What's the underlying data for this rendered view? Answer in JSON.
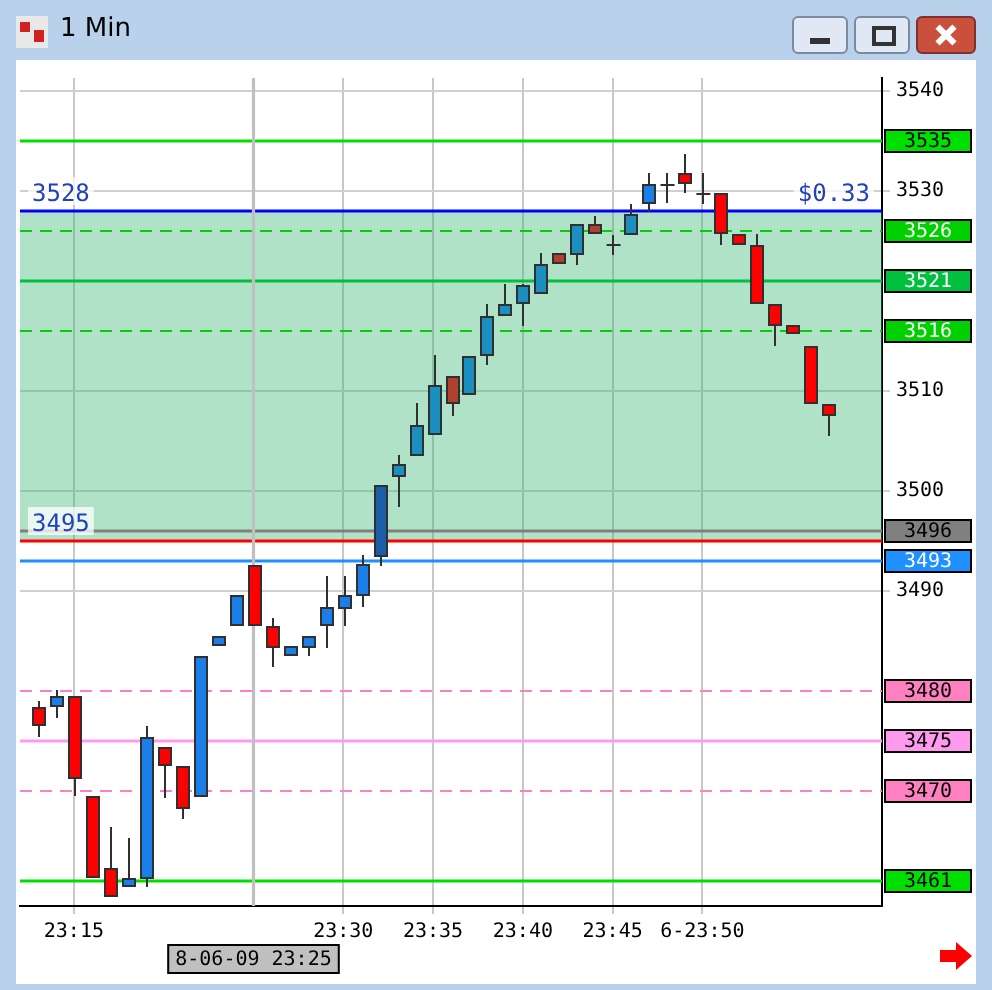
{
  "chart_data": {
    "type": "candlestick",
    "title": "1 Min",
    "x": [
      23.2167,
      23.2333,
      23.25,
      23.2667,
      23.2833,
      23.3,
      23.3167,
      23.3333,
      23.35,
      23.3667,
      23.3833,
      23.4,
      23.4167,
      23.4333,
      23.45,
      23.4667,
      23.4833,
      23.5,
      23.5167,
      23.5333,
      23.55,
      23.5667,
      23.5833,
      23.6,
      23.6167,
      23.6333,
      23.65,
      23.6667,
      23.6833,
      23.7,
      23.7167,
      23.7333,
      23.75,
      23.7667,
      23.7833,
      23.8,
      23.8167,
      23.8333,
      23.85,
      23.8667,
      23.8833,
      23.9,
      23.9167,
      23.9333,
      23.95
    ],
    "ohlc": [
      [
        3478.4,
        3479,
        3475.4,
        3476.5
      ],
      [
        3478.4,
        3480.1,
        3477.3,
        3479.5
      ],
      [
        3479.5,
        3479.5,
        3469.5,
        3471.2
      ],
      [
        3469.5,
        3469.5,
        3461.3,
        3461.3
      ],
      [
        3462.3,
        3466.4,
        3459.4,
        3459.4
      ],
      [
        3460.4,
        3465.3,
        3460.4,
        3461.3
      ],
      [
        3461.2,
        3476.5,
        3460.4,
        3475.4
      ],
      [
        3474.4,
        3474.4,
        3469.3,
        3472.5
      ],
      [
        3472.5,
        3472.5,
        3467.2,
        3468.2
      ],
      [
        3469.4,
        3483.5,
        3469.4,
        3483.5
      ],
      [
        3484.5,
        3485.5,
        3484.5,
        3485.5
      ],
      [
        3486.5,
        3489.6,
        3486.5,
        3489.6
      ],
      [
        3492.6,
        3492.6,
        3486.5,
        3486.5
      ],
      [
        3486.5,
        3487.3,
        3482.4,
        3484.3
      ],
      [
        3483.5,
        3484.5,
        3483.5,
        3484.5
      ],
      [
        3484.3,
        3485.5,
        3483.5,
        3485.5
      ],
      [
        3486.5,
        3491.5,
        3484.3,
        3488.4
      ],
      [
        3488.2,
        3491.5,
        3486.5,
        3489.6
      ],
      [
        3489.5,
        3493.6,
        3488.4,
        3492.7
      ],
      [
        3493.4,
        3500.6,
        3492.5,
        3500.6
      ],
      [
        3501.4,
        3503.6,
        3498.4,
        3502.7
      ],
      [
        3503.5,
        3508.8,
        3503.5,
        3506.6
      ],
      [
        3505.6,
        3513.6,
        3505.6,
        3510.6
      ],
      [
        3511.5,
        3511.5,
        3507.5,
        3508.7
      ],
      [
        3509.6,
        3513.5,
        3509.6,
        3513.5
      ],
      [
        3513.5,
        3518.7,
        3512.6,
        3517.5
      ],
      [
        3517.5,
        3520.7,
        3517.5,
        3518.7
      ],
      [
        3518.7,
        3520.7,
        3516.5,
        3520.6
      ],
      [
        3519.7,
        3523.8,
        3519.7,
        3522.7
      ],
      [
        3523.8,
        3523.8,
        3522.7,
        3522.7
      ],
      [
        3523.6,
        3526.7,
        3522.6,
        3526.7
      ],
      [
        3526.7,
        3527.5,
        3525.7,
        3525.7
      ],
      [
        3524.7,
        3525.6,
        3523.6,
        3524.7
      ],
      [
        3525.6,
        3528.7,
        3525.6,
        3527.7
      ],
      [
        3528.7,
        3531.8,
        3527.9,
        3530.7
      ],
      [
        3530.7,
        3531.8,
        3528.8,
        3530.7
      ],
      [
        3531.8,
        3533.7,
        3529.8,
        3530.7
      ],
      [
        3529.8,
        3531.8,
        3528.7,
        3529.8
      ],
      [
        3529.8,
        3529.8,
        3524.6,
        3525.7
      ],
      [
        3525.7,
        3525.7,
        3524.6,
        3524.6
      ],
      [
        3524.6,
        3525.7,
        3518.7,
        3518.7
      ],
      [
        3518.7,
        3518.7,
        3514.5,
        3516.5
      ],
      [
        3516.6,
        3516.6,
        3515.7,
        3515.7
      ],
      [
        3514.5,
        3514.5,
        3508.7,
        3508.7
      ],
      [
        3508.7,
        3508.7,
        3505.5,
        3507.5
      ]
    ],
    "colors": [
      "#ff0000",
      "#1a7fe8",
      "#ff0000",
      "#ff0000",
      "#ff0000",
      "#1a7fe8",
      "#1a7fe8",
      "#ff0000",
      "#ff0000",
      "#1a7fe8",
      "#1a7fe8",
      "#1a7fe8",
      "#ff0000",
      "#ff0000",
      "#1a7fe8",
      "#1a7fe8",
      "#1a7fe8",
      "#1a7fe8",
      "#1a7fe8",
      "#1a5fa8",
      "#1a8fc0",
      "#1a8fc0",
      "#1a8fc0",
      "#b04030",
      "#1a8fc0",
      "#1a8fc0",
      "#1a8fc0",
      "#1a8fc0",
      "#1a8fc0",
      "#b04030",
      "#1a8fc0",
      "#b04030",
      "#404040",
      "#1a8fc0",
      "#1a7fe8",
      "#404040",
      "#ff0000",
      "#404040",
      "#ff0000",
      "#ff0000",
      "#ff0000",
      "#ff0000",
      "#ff0000",
      "#ff0000",
      "#ff0000"
    ],
    "xlim": [
      23.2,
      24.0
    ],
    "xticks": [
      {
        "value": 23.25,
        "label": "23:15"
      },
      {
        "value": 23.5,
        "label": "23:30"
      },
      {
        "value": 23.5833,
        "label": "23:35"
      },
      {
        "value": 23.6667,
        "label": "23:40"
      },
      {
        "value": 23.75,
        "label": "23:45"
      },
      {
        "value": 23.8333,
        "label": "6-23:50"
      }
    ],
    "ylim": [
      3458.5,
      3541.3
    ],
    "yticks": [
      3490,
      3500,
      3510,
      3530,
      3540
    ],
    "grid": true,
    "legend": false,
    "bands": [
      {
        "axis": "y",
        "from": 3495,
        "to": 3528,
        "color": "#2db36b"
      }
    ],
    "ref_lines": [
      {
        "axis": "y",
        "value": 3535,
        "label": "3535",
        "color": "#00e000"
      },
      {
        "axis": "y",
        "value": 3526,
        "label": "3526",
        "color": "#00d000",
        "line_style": "dashed"
      },
      {
        "axis": "y",
        "value": 3521,
        "label": "3521",
        "color": "#00c040"
      },
      {
        "axis": "y",
        "value": 3516,
        "label": "3516",
        "color": "#00d000",
        "line_style": "dashed"
      },
      {
        "axis": "y",
        "value": 3496,
        "label": "3496",
        "color": "#808080"
      },
      {
        "axis": "y",
        "value": 3493,
        "label": "3493",
        "color": "#1e90ff"
      },
      {
        "axis": "y",
        "value": 3480,
        "label": "3480",
        "color": "#ff80c0",
        "line_style": "dashed"
      },
      {
        "axis": "y",
        "value": 3475,
        "label": "3475",
        "color": "#ff99ee"
      },
      {
        "axis": "y",
        "value": 3470,
        "label": "3470",
        "color": "#ff80c0",
        "line_style": "dashed"
      },
      {
        "axis": "y",
        "value": 3461,
        "label": "3461",
        "color": "#00e000"
      },
      {
        "axis": "y",
        "value": 3528,
        "color": "#0000ff"
      },
      {
        "axis": "y",
        "value": 3495,
        "color": "#ff0000"
      },
      {
        "axis": "x",
        "value": 23.4167,
        "label": "8-06-09 23:25",
        "color": "#c0c0c0"
      }
    ],
    "annotations": [
      {
        "text": "3528",
        "y": 3528
      },
      {
        "text": "3495",
        "y": 3495
      },
      {
        "text": "$0.33",
        "y": 3528
      }
    ]
  }
}
